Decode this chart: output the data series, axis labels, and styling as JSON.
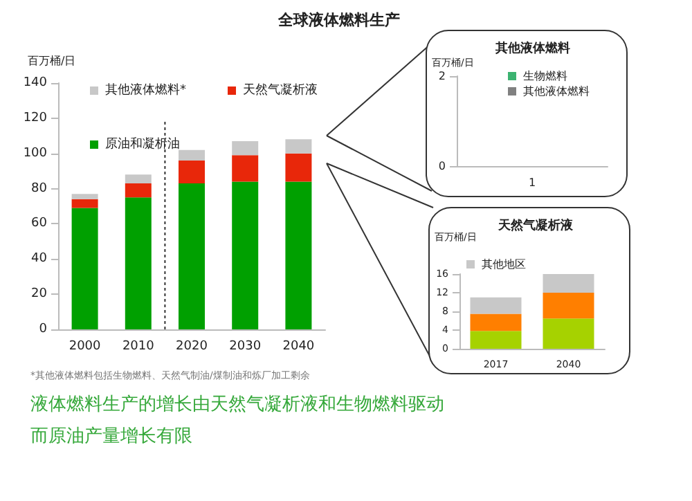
{
  "chart_data": [
    {
      "type": "bar",
      "title": "全球液体燃料生产",
      "ylabel": "百万桶/日",
      "categories": [
        "2000",
        "2010",
        "2020",
        "2030",
        "2040"
      ],
      "stacked": true,
      "ylim": [
        0,
        140
      ],
      "yticks": [
        0,
        20,
        40,
        60,
        80,
        100,
        120,
        140
      ],
      "legend": "top left",
      "grid": false,
      "series": [
        {
          "name": "原油和凝析油",
          "color": "#00a000",
          "values": [
            69,
            75,
            83,
            84,
            84
          ]
        },
        {
          "name": "天然气凝析液",
          "color": "#e8270a",
          "values": [
            5,
            8,
            13,
            15,
            16
          ]
        },
        {
          "name": "其他液体燃料*",
          "color": "#c8c8c8",
          "values": [
            3,
            5,
            6,
            8,
            8
          ]
        }
      ],
      "annotations": [
        "*其他液体燃料包括生物燃料、天然气制油/煤制油和炼厂加工剩余",
        "液体燃料生产的增长由天然气凝析液和生物燃料驱动",
        "而原油产量增长有限"
      ]
    },
    {
      "type": "bar",
      "title": "其他液体燃料",
      "ylabel": "百万桶/日",
      "categories": [
        "1"
      ],
      "stacked": true,
      "ylim": [
        0,
        2
      ],
      "yticks": [
        0,
        2
      ],
      "legend": "top",
      "grid": false,
      "series": [
        {
          "name": "生物燃料",
          "color": "#3cb371",
          "values": [
            null
          ]
        },
        {
          "name": "其他液体燃料",
          "color": "#808080",
          "values": [
            null
          ]
        }
      ]
    },
    {
      "type": "bar",
      "title": "天然气凝析液",
      "ylabel": "百万桶/日",
      "categories": [
        "2017",
        "2040"
      ],
      "stacked": true,
      "ylim": [
        0,
        16
      ],
      "yticks": [
        0,
        4,
        8,
        12,
        16
      ],
      "legend": "top left",
      "grid": false,
      "series": [
        {
          "color": "#a6d200",
          "values": [
            3.8,
            6.5
          ]
        },
        {
          "color": "#ff7f00",
          "values": [
            3.7,
            5.5
          ]
        },
        {
          "name": "其他地区",
          "color": "#c8c8c8",
          "values": [
            3.5,
            4
          ]
        }
      ]
    }
  ]
}
